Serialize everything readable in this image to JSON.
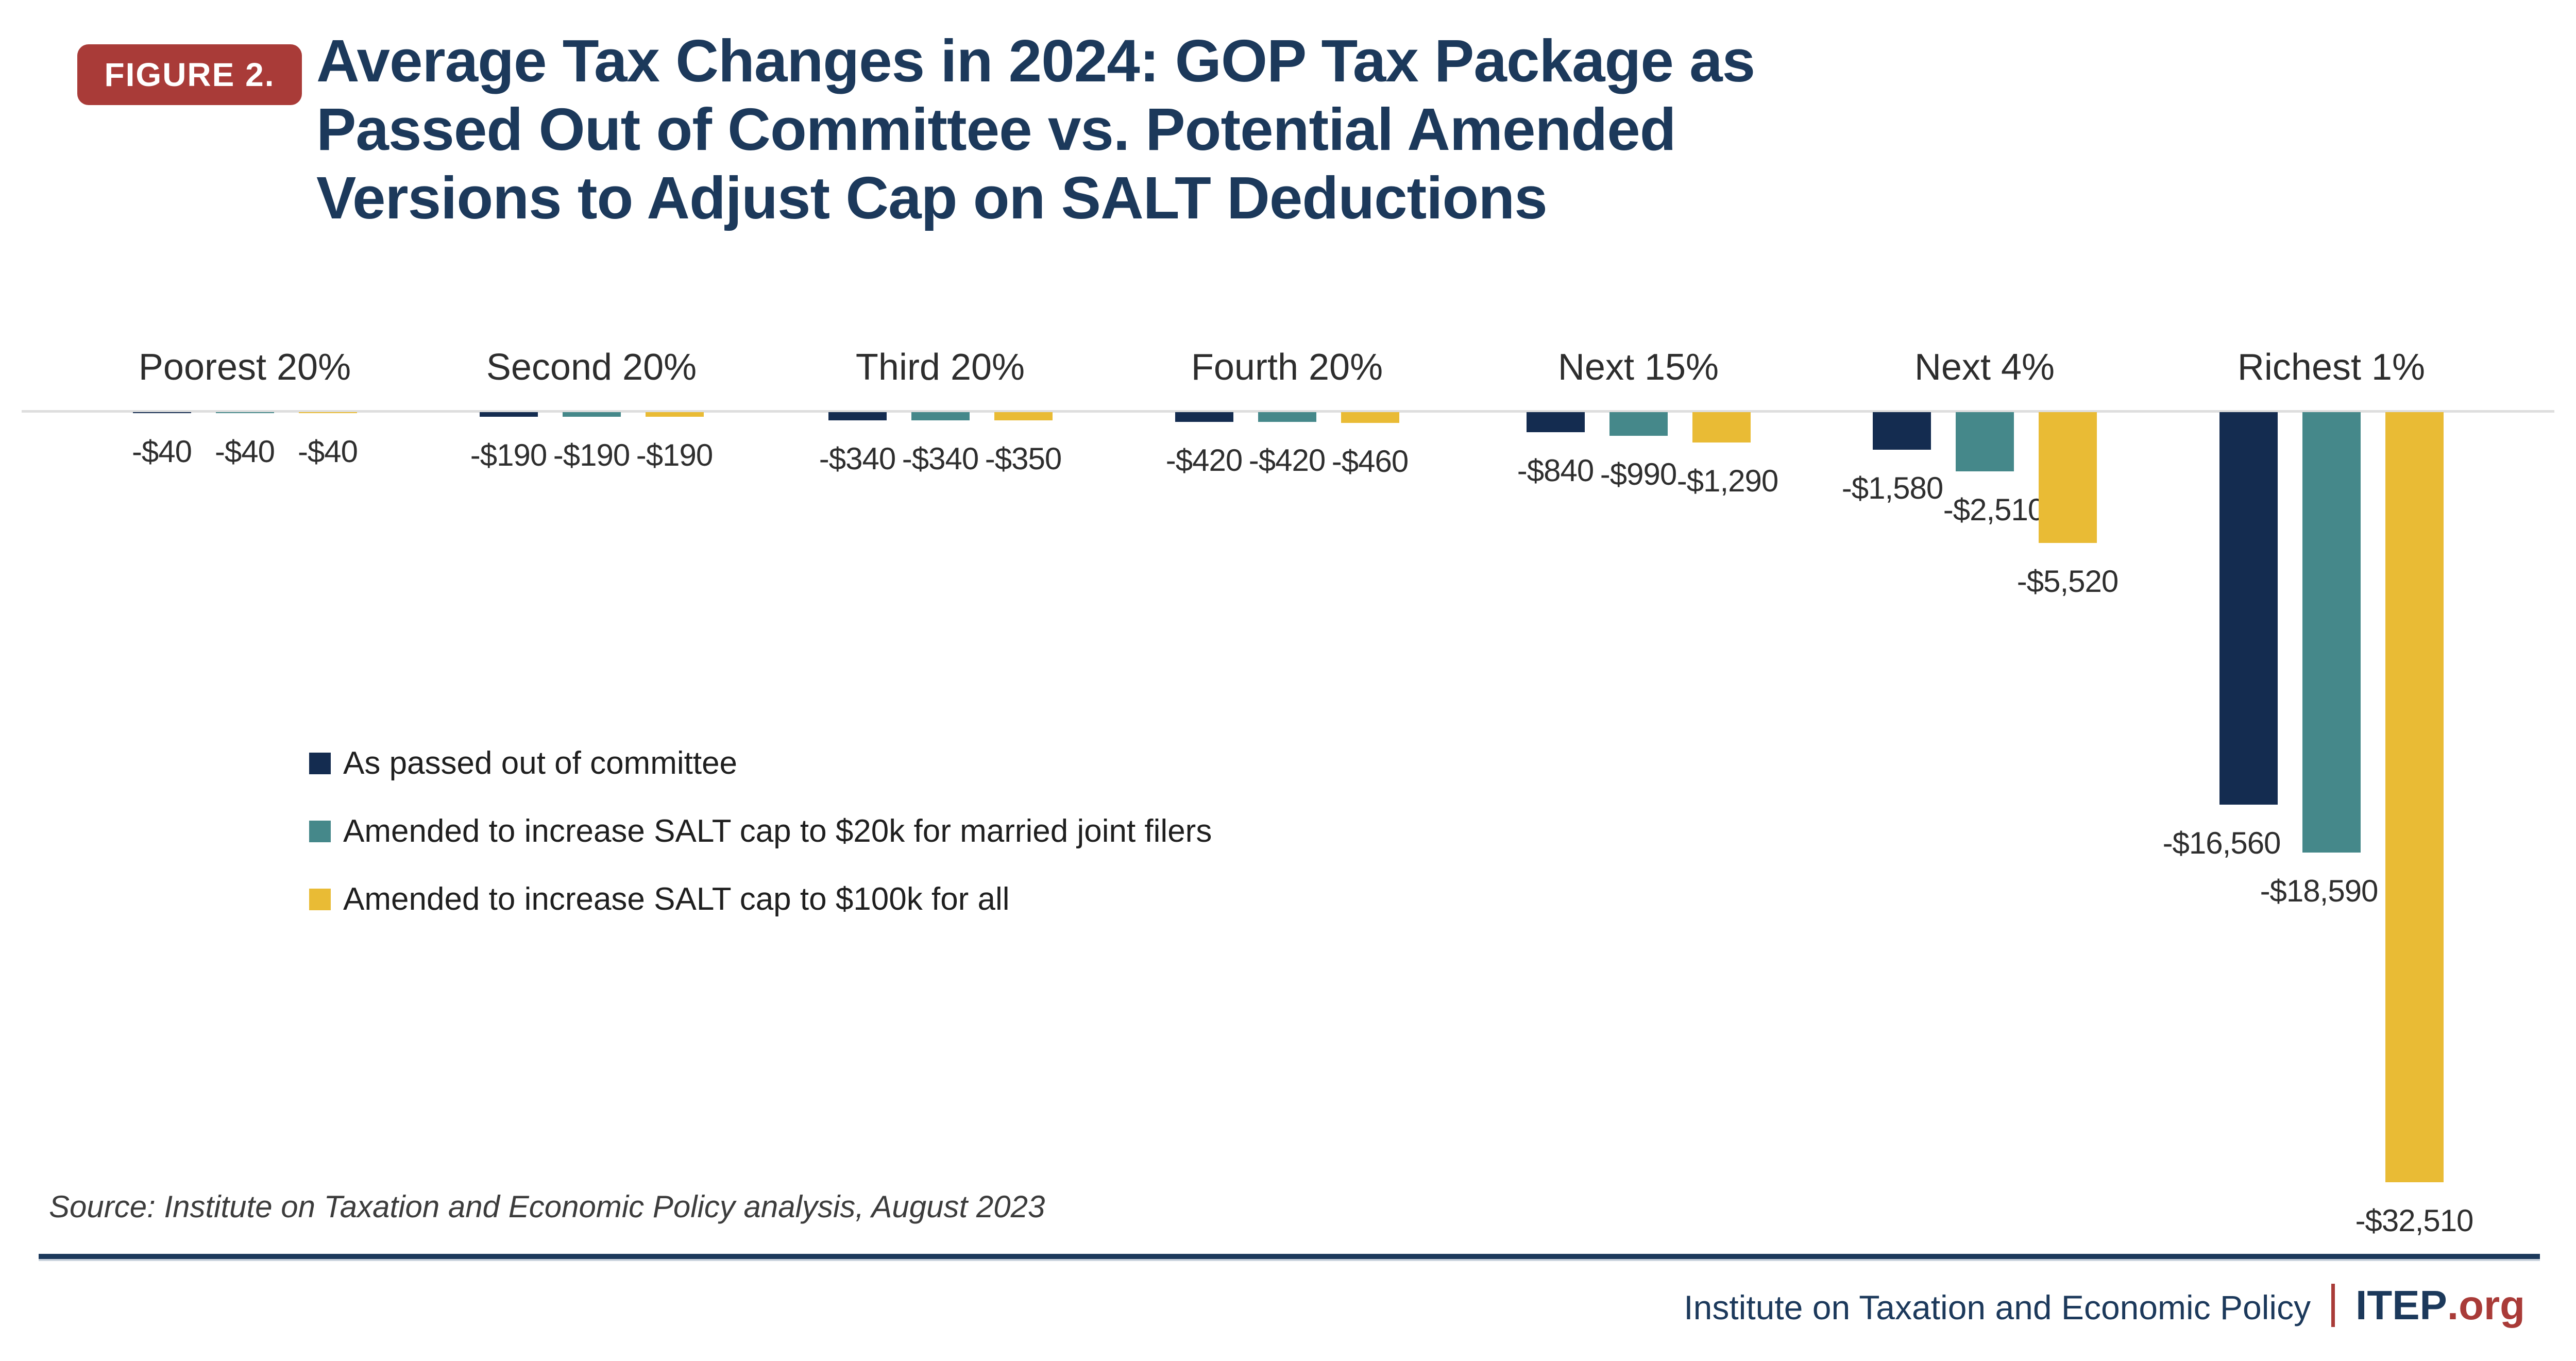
{
  "figure_badge": "FIGURE 2.",
  "title": {
    "line1": "Average Tax Changes in 2024: GOP Tax Package as",
    "line2": "Passed Out of Committee vs. Potential Amended",
    "line3": "Versions to Adjust Cap on SALT Deductions"
  },
  "colors": {
    "badge_red": "#a93b38",
    "title_navy": "#1c395b",
    "bar_navy": "#142c50",
    "bar_teal": "#45888a",
    "bar_yellow": "#e9bb35",
    "zero_line_gray": "#dedede",
    "rule_navy": "#1c395b",
    "footer_red": "#a93b38"
  },
  "chart_data": {
    "type": "bar",
    "title": "Average Tax Changes in 2024: GOP Tax Package as Passed Out of Committee vs. Potential Amended Versions to Adjust Cap on SALT Deductions",
    "categories": [
      "Poorest 20%",
      "Second 20%",
      "Third 20%",
      "Fourth 20%",
      "Next 15%",
      "Next 4%",
      "Richest 1%"
    ],
    "series": [
      {
        "name": "As passed out of committee",
        "color": "#142c50",
        "values": [
          -40,
          -190,
          -340,
          -420,
          -840,
          -1580,
          -16560
        ],
        "labels": [
          "-$40",
          "-$190",
          "-$340",
          "-$420",
          "-$840",
          "-$1,580",
          "-$16,560"
        ]
      },
      {
        "name": "Amended to increase SALT cap to $20k for married joint filers",
        "color": "#45888a",
        "values": [
          -40,
          -190,
          -340,
          -420,
          -990,
          -2510,
          -18590
        ],
        "labels": [
          "-$40",
          "-$190",
          "-$340",
          "-$420",
          "-$990",
          "-$2,510",
          "-$18,590"
        ]
      },
      {
        "name": "Amended to increase SALT cap to $100k for all",
        "color": "#e9bb35",
        "values": [
          -40,
          -190,
          -350,
          -460,
          -1290,
          -5520,
          -32510
        ],
        "labels": [
          "-$40",
          "-$190",
          "-$350",
          "-$460",
          "-$1,290",
          "-$5,520",
          "-$32,510"
        ]
      }
    ],
    "baseline_value": 0,
    "ylim": [
      -32510,
      0
    ],
    "grid": false,
    "legend_position": "middle-left",
    "value_labels_shown": true
  },
  "source_note": "Source: Institute on Taxation and Economic Policy analysis, August 2023",
  "footer": {
    "org_name": "Institute on Taxation and Economic Policy",
    "divider": "|",
    "brand": "ITEP",
    "brand_suffix": ".org"
  }
}
